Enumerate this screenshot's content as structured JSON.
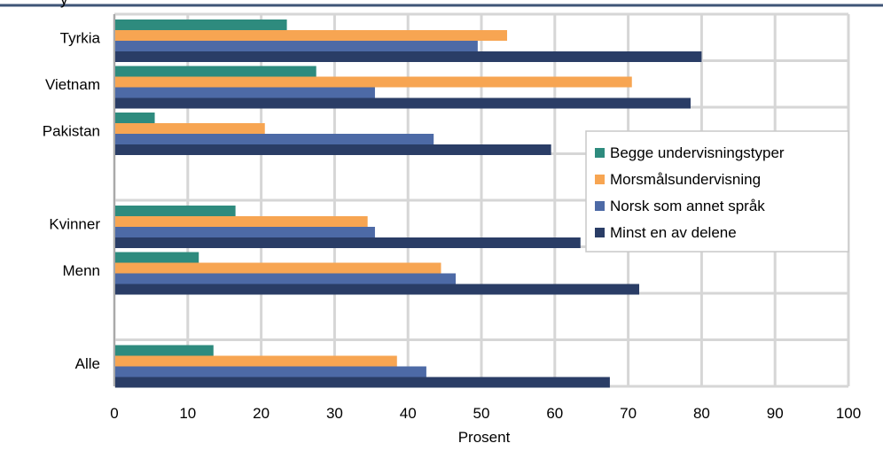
{
  "header_title": "y",
  "chart_data": {
    "type": "bar",
    "orientation": "horizontal",
    "categories": [
      "Tyrkia",
      "Vietnam",
      "Pakistan",
      "",
      "Kvinner",
      "Menn",
      "",
      "Alle"
    ],
    "series": [
      {
        "name": "Begge undervisningstyper",
        "color": "#2e8b7e",
        "values": [
          23.5,
          27.5,
          5.5,
          null,
          16.5,
          11.5,
          null,
          13.5
        ]
      },
      {
        "name": "Morsmålsundervisning",
        "color": "#f7a552",
        "values": [
          53.5,
          70.5,
          20.5,
          null,
          34.5,
          44.5,
          null,
          38.5
        ]
      },
      {
        "name": "Norsk som annet språk",
        "color": "#4d6aa6",
        "values": [
          49.5,
          35.5,
          43.5,
          null,
          35.5,
          46.5,
          null,
          42.5
        ]
      },
      {
        "name": "Minst en av delene",
        "color": "#2a3d66",
        "values": [
          80,
          78.5,
          59.5,
          null,
          63.5,
          71.5,
          null,
          67.5
        ]
      }
    ],
    "xlim": [
      0,
      100
    ],
    "xticks": [
      0,
      10,
      20,
      30,
      40,
      50,
      60,
      70,
      80,
      90,
      100
    ],
    "xlabel": "Prosent",
    "ylabel": "",
    "title": "",
    "grid": true,
    "legend_position": "right"
  }
}
